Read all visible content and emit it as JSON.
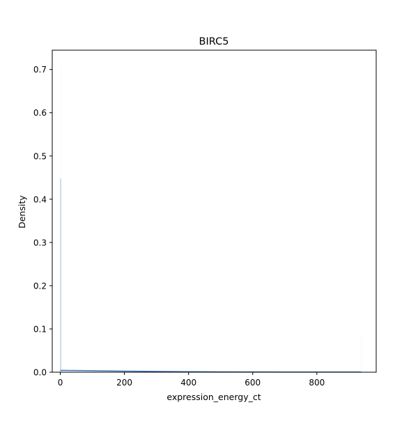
{
  "chart_data": {
    "type": "histogram",
    "title": "BIRC5",
    "xlabel": "expression_energy_ct",
    "ylabel": "Density",
    "xlim": [
      -25,
      985
    ],
    "ylim": [
      0,
      0.7446
    ],
    "x_ticks": [
      {
        "value": 0,
        "label": "0"
      },
      {
        "value": 200,
        "label": "200"
      },
      {
        "value": 400,
        "label": "400"
      },
      {
        "value": 600,
        "label": "600"
      },
      {
        "value": 800,
        "label": "800"
      }
    ],
    "y_ticks": [
      {
        "value": 0.0,
        "label": "0.0"
      },
      {
        "value": 0.1,
        "label": "0.1"
      },
      {
        "value": 0.2,
        "label": "0.2"
      },
      {
        "value": 0.3,
        "label": "0.3"
      },
      {
        "value": 0.4,
        "label": "0.4"
      },
      {
        "value": 0.5,
        "label": "0.5"
      },
      {
        "value": 0.6,
        "label": "0.6"
      },
      {
        "value": 0.7,
        "label": "0.7"
      }
    ],
    "bars": [
      {
        "x0": 0,
        "x1": 2,
        "value": 0.71,
        "color": "#f4f7fb"
      },
      {
        "x0": 0,
        "x1": 2,
        "value": 0.448,
        "color": "#9db8dc"
      },
      {
        "x0": 937,
        "x1": 939,
        "value": 0.088,
        "color": "#f4f7fb"
      }
    ],
    "kde": {
      "x": [
        0,
        100,
        200,
        300,
        400,
        500,
        600,
        700,
        800,
        938
      ],
      "y": [
        0.0042,
        0.0035,
        0.0025,
        0.0018,
        0.0013,
        0.0009,
        0.0007,
        0.0005,
        0.0004,
        0.0003
      ],
      "color": "#3c74b4"
    },
    "grid": false,
    "legend": "none"
  }
}
